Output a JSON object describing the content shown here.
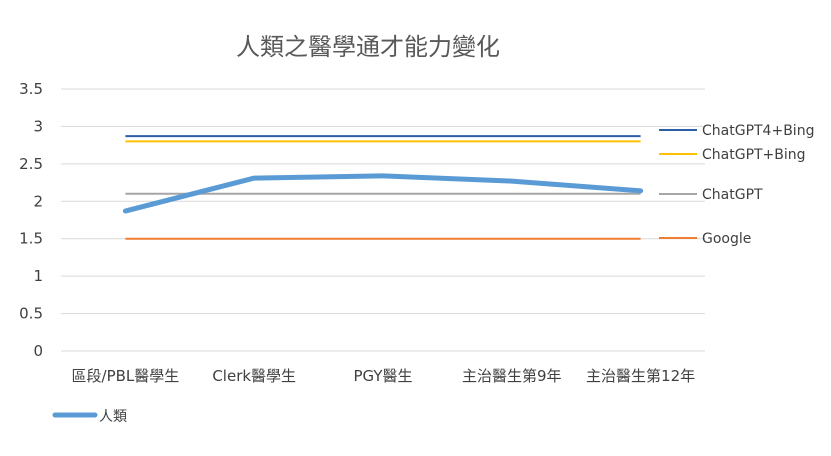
{
  "chart_data": {
    "type": "line",
    "title": "人類之醫學通才能力變化",
    "xlabel": "",
    "ylabel": "",
    "ylim": [
      0,
      3.5
    ],
    "yticks": [
      "0",
      "0.5",
      "1",
      "1.5",
      "2",
      "2.5",
      "3",
      "3.5"
    ],
    "grid": true,
    "categories": [
      "區段/PBL醫學生",
      "Clerk醫學生",
      "PGY醫生",
      "主治醫生第9年",
      "主治醫生第12年"
    ],
    "series": [
      {
        "name": "人類",
        "values": [
          1.87,
          2.31,
          2.34,
          2.27,
          2.14
        ],
        "color": "#5B9BD5"
      }
    ],
    "reference_lines": [
      {
        "name": "ChatGPT4+Bing",
        "value": 2.87,
        "color": "#2E5EA8"
      },
      {
        "name": "ChatGPT+Bing",
        "value": 2.8,
        "color": "#FFC000"
      },
      {
        "name": "ChatGPT",
        "value": 2.1,
        "color": "#A5A5A5"
      },
      {
        "name": "Google",
        "value": 1.5,
        "color": "#ED7D31"
      }
    ],
    "legend_position": "bottom-left"
  }
}
